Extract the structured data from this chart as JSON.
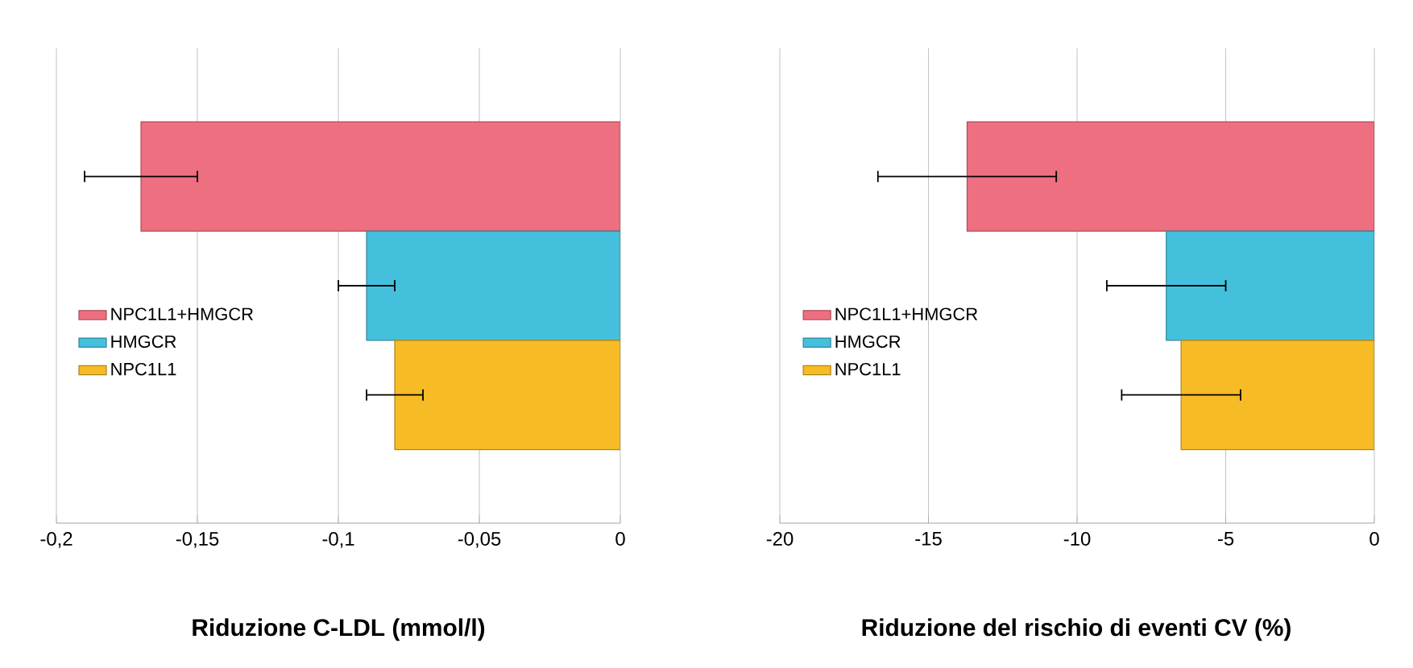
{
  "chart_data": [
    {
      "type": "bar",
      "orientation": "horizontal",
      "xlabel": "Riduzione C-LDL (mmol/l)",
      "categories": [
        null
      ],
      "xlim": [
        -0.2,
        0
      ],
      "xticks": [
        {
          "value": -0.2,
          "label": "-0,2"
        },
        {
          "value": -0.15,
          "label": "-0,15"
        },
        {
          "value": -0.1,
          "label": "-0,1"
        },
        {
          "value": -0.05,
          "label": "-0,05"
        },
        0
      ],
      "grid": "x",
      "legend": "left",
      "series": [
        {
          "name": "NPC1L1+HMGCR",
          "color": "#ee6f80",
          "values": [
            -0.17
          ],
          "errors": [
            [
              -0.19,
              -0.15
            ]
          ]
        },
        {
          "name": "HMGCR",
          "color": "#45c0dc",
          "values": [
            -0.09
          ],
          "errors": [
            [
              -0.1,
              -0.08
            ]
          ]
        },
        {
          "name": "NPC1L1",
          "color": "#f7bb25",
          "values": [
            -0.08
          ],
          "errors": [
            [
              -0.09,
              -0.07
            ]
          ]
        }
      ]
    },
    {
      "type": "bar",
      "orientation": "horizontal",
      "xlabel": "Riduzione del rischio di eventi CV (%)",
      "categories": [
        null
      ],
      "xlim": [
        -20,
        0
      ],
      "xticks": [
        -20,
        -15,
        -10,
        -5,
        0
      ],
      "grid": "x",
      "legend": "left",
      "series": [
        {
          "name": "NPC1L1+HMGCR",
          "color": "#ee6f80",
          "values": [
            -13.7
          ],
          "errors": [
            [
              -16.7,
              -10.7
            ]
          ]
        },
        {
          "name": "HMGCR",
          "color": "#45c0dc",
          "values": [
            -7.0
          ],
          "errors": [
            [
              -9.0,
              -5.0
            ]
          ]
        },
        {
          "name": "NPC1L1",
          "color": "#f7bb25",
          "values": [
            -6.5
          ],
          "errors": [
            [
              -8.5,
              -4.5
            ]
          ]
        }
      ]
    }
  ]
}
